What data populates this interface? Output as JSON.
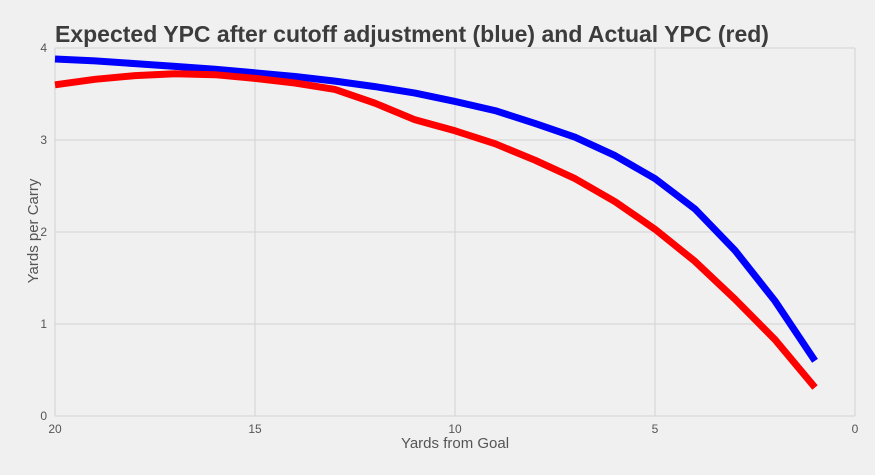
{
  "chart_data": {
    "type": "line",
    "title": "Expected YPC after cutoff adjustment (blue) and Actual YPC (red)",
    "xlabel": "Yards from Goal",
    "ylabel": "Yards per Carry",
    "xlim": [
      20,
      0
    ],
    "ylim": [
      0,
      4
    ],
    "x_reversed": true,
    "x_ticks": [
      20,
      15,
      10,
      5,
      0
    ],
    "y_ticks": [
      0,
      1,
      2,
      3,
      4
    ],
    "grid": true,
    "legend": "none",
    "series": [
      {
        "color": "#0000ff",
        "x": [
          20,
          19,
          18,
          17,
          16,
          15,
          14,
          13,
          12,
          11,
          10,
          9,
          8,
          7,
          6,
          5,
          4,
          3,
          2,
          1
        ],
        "values": [
          3.88,
          3.86,
          3.83,
          3.8,
          3.77,
          3.73,
          3.69,
          3.64,
          3.58,
          3.51,
          3.42,
          3.32,
          3.18,
          3.03,
          2.83,
          2.58,
          2.25,
          1.8,
          1.25,
          0.6
        ]
      },
      {
        "color": "#ff0000",
        "x": [
          20,
          19,
          18,
          17,
          16,
          15,
          14,
          13,
          12,
          11,
          10,
          9,
          8,
          7,
          6,
          5,
          4,
          3,
          2,
          1
        ],
        "values": [
          3.6,
          3.66,
          3.7,
          3.72,
          3.71,
          3.67,
          3.62,
          3.55,
          3.4,
          3.22,
          3.1,
          2.96,
          2.78,
          2.58,
          2.33,
          2.03,
          1.68,
          1.27,
          0.83,
          0.31
        ]
      }
    ]
  }
}
